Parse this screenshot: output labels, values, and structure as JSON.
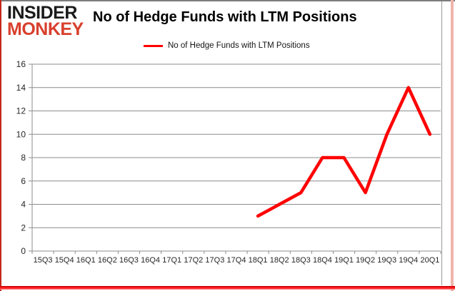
{
  "brand": {
    "logo_line1": "INSIDER",
    "logo_line2": "MONKEY",
    "logo_color_line1": "#1a1a1a",
    "logo_color_line2": "#d8402d"
  },
  "title": "No of Hedge Funds with LTM Positions",
  "legend": {
    "label": "No of Hedge Funds with LTM Positions"
  },
  "chart_data": {
    "type": "line",
    "title": "No of Hedge Funds with LTM Positions",
    "categories": [
      "15Q3",
      "15Q4",
      "16Q1",
      "16Q2",
      "16Q3",
      "16Q4",
      "17Q1",
      "17Q2",
      "17Q3",
      "17Q4",
      "18Q1",
      "18Q2",
      "18Q3",
      "18Q4",
      "19Q1",
      "19Q2",
      "19Q3",
      "19Q4",
      "20Q1"
    ],
    "series": [
      {
        "name": "No of Hedge Funds with LTM Positions",
        "color": "#fe0000",
        "values": [
          null,
          null,
          null,
          null,
          null,
          null,
          null,
          null,
          null,
          null,
          3,
          4,
          5,
          8,
          8,
          5,
          10,
          14,
          10
        ]
      }
    ],
    "ylim": [
      0,
      16
    ],
    "yticks": [
      0,
      2,
      4,
      6,
      8,
      10,
      12,
      14,
      16
    ],
    "xlabel": "",
    "ylabel": "",
    "grid": "horizontal",
    "gridline_color": "#8c8c8c",
    "axis_color": "#8c8c8c",
    "tick_label_color": "#262626",
    "legend_position": "top-center",
    "line_width": 4.5
  }
}
